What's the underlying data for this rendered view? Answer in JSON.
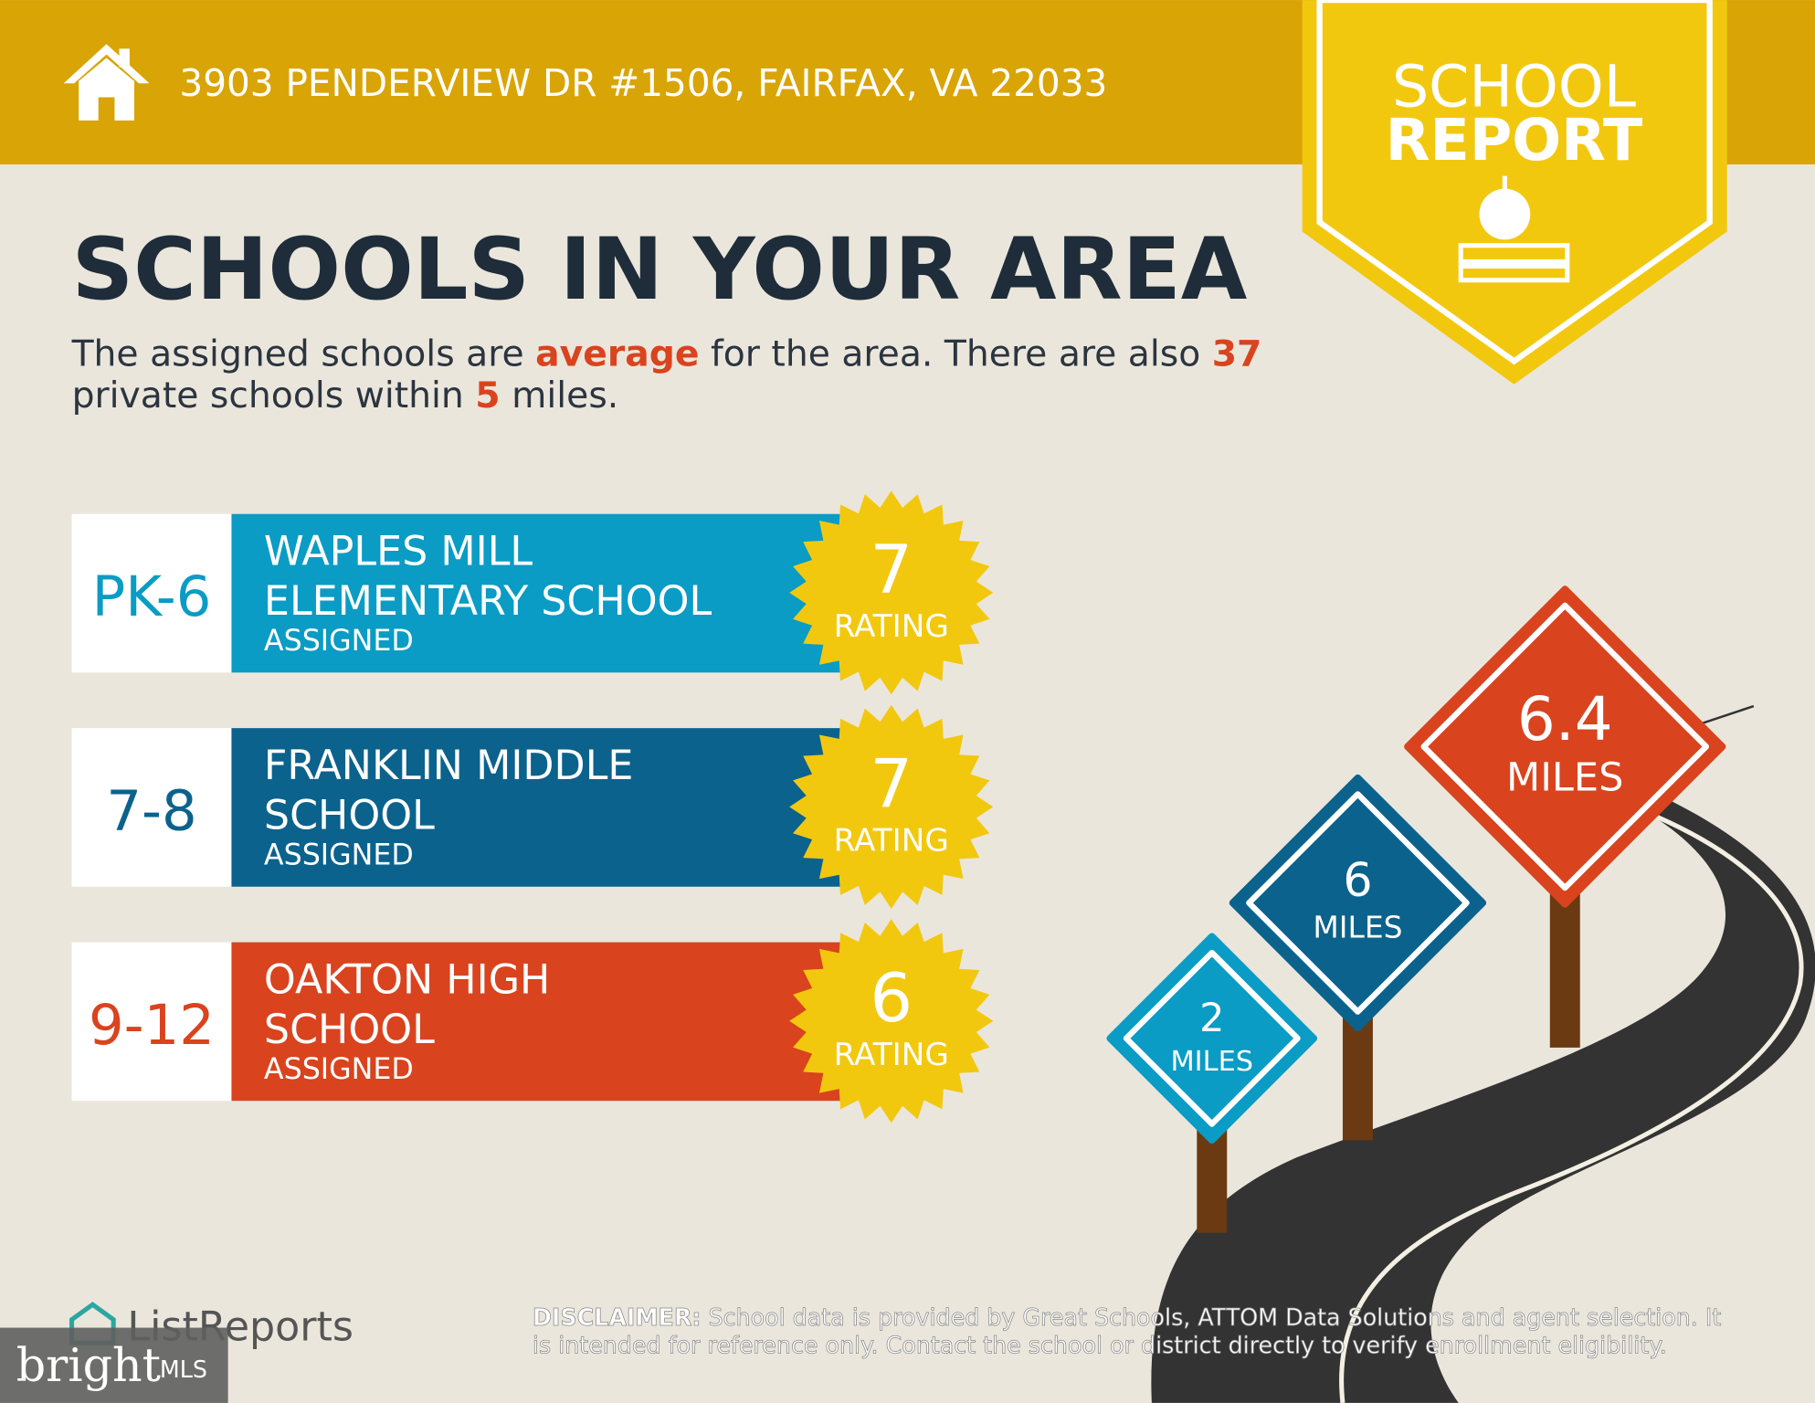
{
  "header": {
    "address": "3903 PENDERVIEW DR #1506, FAIRFAX, VA 22033"
  },
  "badge": {
    "line1": "SCHOOL",
    "line2": "REPORT"
  },
  "title": "SCHOOLS IN YOUR AREA",
  "intro": {
    "segments": [
      "The assigned schools are ",
      "average",
      " for the area. There are also ",
      "37",
      "private schools within ",
      "5",
      " miles."
    ]
  },
  "schools": [
    {
      "grades": "PK-6",
      "name_lines": [
        "WAPLES MILL",
        "ELEMENTARY SCHOOL"
      ],
      "status": "ASSIGNED",
      "rating": 7,
      "rating_label": "RATING"
    },
    {
      "grades": "7-8",
      "name_lines": [
        "FRANKLIN MIDDLE",
        "SCHOOL"
      ],
      "status": "ASSIGNED",
      "rating": 7,
      "rating_label": "RATING"
    },
    {
      "grades": "9-12",
      "name_lines": [
        "OAKTON HIGH",
        "SCHOOL"
      ],
      "status": "ASSIGNED",
      "rating": 6,
      "rating_label": "RATING"
    }
  ],
  "signs": [
    {
      "value": 2,
      "unit": "MILES"
    },
    {
      "value": 6,
      "unit": "MILES"
    },
    {
      "value": 6.4,
      "unit": "MILES"
    }
  ],
  "disclaimer": {
    "label": "DISCLAIMER:",
    "lines": [
      " School data is provided by Great Schools, ATTOM Data Solutions and agent selection. It",
      "is intended for reference only. Contact the school or district directly to verify enrollment eligibility."
    ]
  },
  "footer": {
    "brand": "ListReports",
    "mls_word": "bright",
    "mls_suffix": "MLS"
  }
}
